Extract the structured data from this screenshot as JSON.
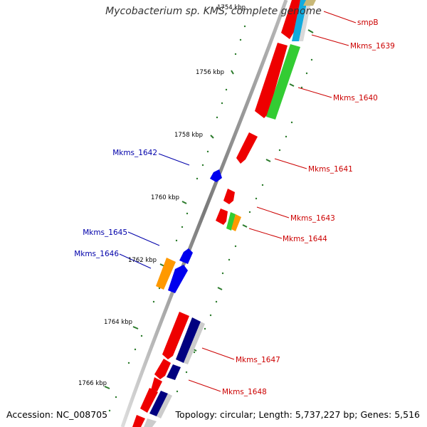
{
  "title": "Mycobacterium sp. KMS, complete genome",
  "footer": {
    "accession_label": "Accession:",
    "accession": "NC_008705",
    "topology_label": "Topology:",
    "topology": "circular",
    "length_label": "Length:",
    "length": "5,737,227 bp",
    "genes_label": "Genes:",
    "genes": "5,516"
  },
  "colors": {
    "forward_label": "#cc0000",
    "reverse_label": "#0000aa",
    "backbone": "#808080",
    "tick": "#2a7a2a",
    "red": "#ee0000",
    "blue": "#0000ee",
    "green": "#33cc33",
    "orange": "#ff9900",
    "cyan": "#11aadd",
    "navy": "#000080",
    "olive": "#c8b878",
    "grey": "#cfcfcf"
  },
  "kbp_ticks": [
    "1754 kbp",
    "1756 kbp",
    "1758 kbp",
    "1760 kbp",
    "1762 kbp",
    "1764 kbp",
    "1766 kbp"
  ],
  "labels": [
    {
      "text": "smpB",
      "strand": "forward"
    },
    {
      "text": "Mkms_1639",
      "strand": "forward"
    },
    {
      "text": "Mkms_1640",
      "strand": "forward"
    },
    {
      "text": "Mkms_1641",
      "strand": "forward"
    },
    {
      "text": "Mkms_1642",
      "strand": "reverse"
    },
    {
      "text": "Mkms_1643",
      "strand": "forward"
    },
    {
      "text": "Mkms_1644",
      "strand": "forward"
    },
    {
      "text": "Mkms_1645",
      "strand": "reverse"
    },
    {
      "text": "Mkms_1646",
      "strand": "reverse"
    },
    {
      "text": "Mkms_1647",
      "strand": "forward"
    },
    {
      "text": "Mkms_1648",
      "strand": "forward"
    }
  ]
}
